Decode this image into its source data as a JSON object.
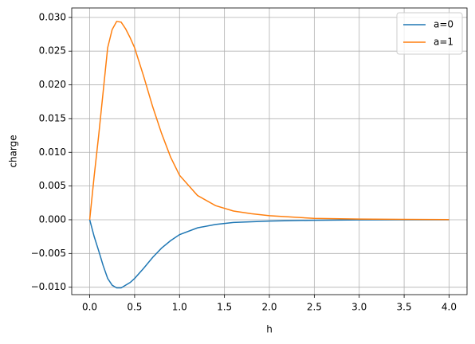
{
  "chart_data": {
    "type": "line",
    "xlabel": "h",
    "ylabel": "charge",
    "x": [
      0,
      0.05,
      0.1,
      0.15,
      0.2,
      0.25,
      0.3,
      0.35,
      0.4,
      0.45,
      0.5,
      0.6,
      0.7,
      0.8,
      0.9,
      1.0,
      1.2,
      1.4,
      1.6,
      1.8,
      2.0,
      2.5,
      3.0,
      3.5,
      4.0
    ],
    "series": [
      {
        "name": "a=0",
        "color": "#1f77b4",
        "values": [
          0,
          -0.0025,
          -0.0046,
          -0.0068,
          -0.0087,
          -0.0097,
          -0.0101,
          -0.0101,
          -0.0097,
          -0.0093,
          -0.0087,
          -0.0072,
          -0.0056,
          -0.0042,
          -0.0031,
          -0.0022,
          -0.0012,
          -0.0007,
          -0.0004,
          -0.0003,
          -0.0002,
          -7e-05,
          -2e-05,
          -1e-05,
          0
        ]
      },
      {
        "name": "a=1",
        "color": "#ff7f0e",
        "values": [
          0,
          0.0065,
          0.0125,
          0.019,
          0.0255,
          0.0282,
          0.0294,
          0.0293,
          0.0283,
          0.027,
          0.0255,
          0.0213,
          0.0168,
          0.0128,
          0.0093,
          0.0066,
          0.0036,
          0.0021,
          0.0013,
          0.0009,
          0.0006,
          0.0002,
          0.0001,
          5e-05,
          3e-05
        ]
      }
    ],
    "xlim": [
      -0.2,
      4.2
    ],
    "ylim": [
      -0.0111,
      0.0314
    ],
    "xticks": [
      {
        "value": 0,
        "label": "0.0"
      },
      0.5,
      {
        "value": 1,
        "label": "1.0"
      },
      1.5,
      {
        "value": 2,
        "label": "2.0"
      },
      2.5,
      {
        "value": 3,
        "label": "3.0"
      },
      3.5,
      {
        "value": 4,
        "label": "4.0"
      }
    ],
    "yticks": [
      {
        "value": -0.01,
        "label": "−0.010"
      },
      {
        "value": -0.005,
        "label": "−0.005"
      },
      {
        "value": 0,
        "label": "0.000"
      },
      0.005,
      {
        "value": 0.01,
        "label": "0.010"
      },
      0.015,
      {
        "value": 0.02,
        "label": "0.020"
      },
      0.025,
      {
        "value": 0.03,
        "label": "0.030"
      }
    ],
    "grid": true,
    "legend": "upper right"
  }
}
